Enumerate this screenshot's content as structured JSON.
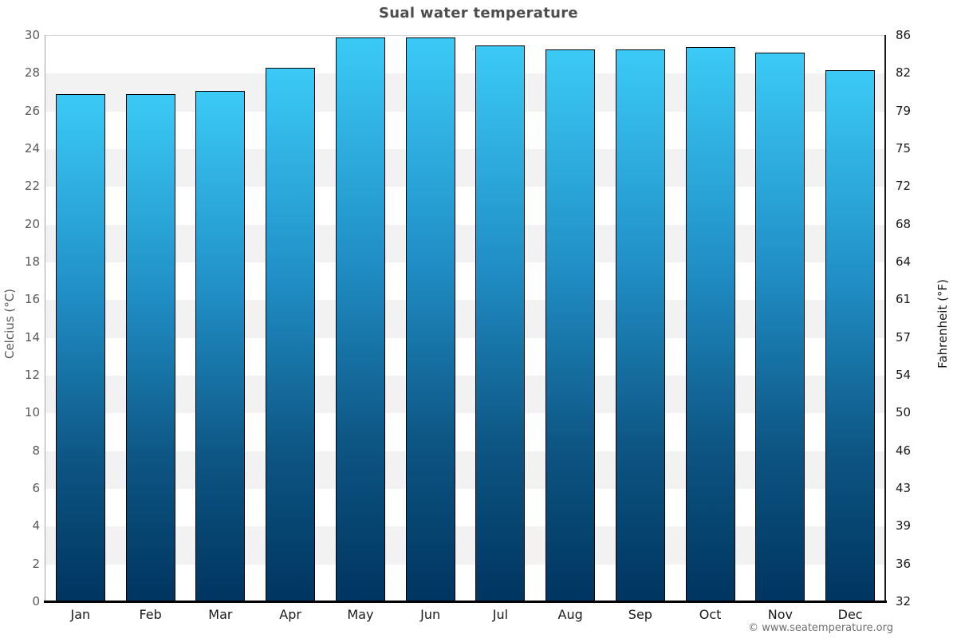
{
  "chart_data": {
    "type": "bar",
    "title": "Sual water temperature",
    "categories": [
      "Jan",
      "Feb",
      "Mar",
      "Apr",
      "May",
      "Jun",
      "Jul",
      "Aug",
      "Sep",
      "Oct",
      "Nov",
      "Dec"
    ],
    "values": [
      26.9,
      26.9,
      27.1,
      28.3,
      29.9,
      29.9,
      29.5,
      29.3,
      29.3,
      29.4,
      29.1,
      28.2
    ],
    "ylabel_left": "Celcius (°C)",
    "ylabel_right": "Fahrenheit (°F)",
    "ylim_celsius": [
      0,
      30
    ],
    "celsius_ticks": [
      0,
      2,
      4,
      6,
      8,
      10,
      12,
      14,
      16,
      18,
      20,
      22,
      24,
      26,
      28,
      30
    ],
    "fahrenheit_ticks": [
      32,
      36,
      39,
      43,
      46,
      50,
      54,
      57,
      61,
      64,
      68,
      72,
      75,
      79,
      82,
      86
    ],
    "legend": "none",
    "grid": "alternating horizontal bands every 2 degrees C",
    "band_colors": {
      "light": "#ffffff",
      "shaded": "#f2f2f2"
    },
    "bar_gradient": [
      "#3bcaf5",
      "#2191c8",
      "#0d5583",
      "#003560"
    ],
    "bar_border_color": "#000000"
  },
  "footer": {
    "copyright": "© www.seatemperature.org"
  }
}
